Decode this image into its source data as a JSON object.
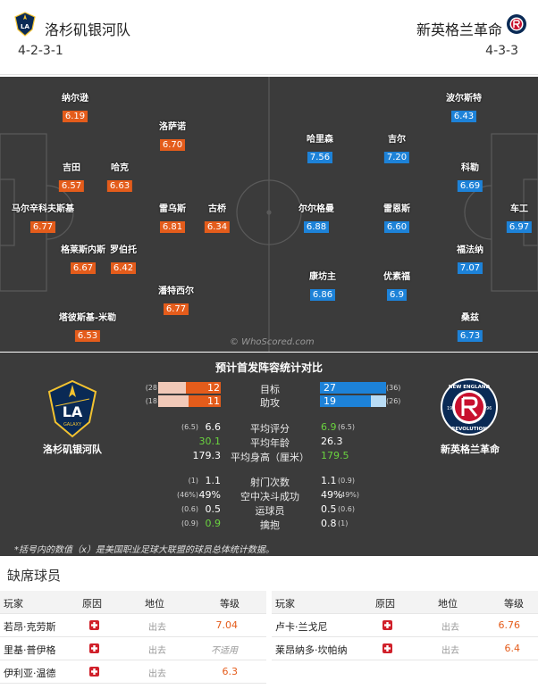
{
  "header": {
    "home_name": "洛杉矶银河队",
    "home_formation": "4-2-3-1",
    "away_name": "新英格兰革命",
    "away_formation": "4-3-3"
  },
  "home_players": [
    {
      "name": "纳尔逊",
      "rating": "6.19"
    },
    {
      "name": "洛萨诺",
      "rating": "6.70"
    },
    {
      "name": "吉田",
      "rating": "6.57"
    },
    {
      "name": "哈克",
      "rating": "6.63"
    },
    {
      "name": "马尔辛科夫斯基",
      "rating": "6.77"
    },
    {
      "name": "雷乌斯",
      "rating": "6.81"
    },
    {
      "name": "古桥",
      "rating": "6.34"
    },
    {
      "name": "格莱斯内斯",
      "rating": "6.67"
    },
    {
      "name": "罗伯托",
      "rating": "6.42"
    },
    {
      "name": "潘特西尔",
      "rating": "6.77"
    },
    {
      "name": "塔彼斯基-米勒",
      "rating": "6.53"
    }
  ],
  "away_players": [
    {
      "name": "波尔斯特",
      "rating": "6.43"
    },
    {
      "name": "哈里森",
      "rating": "7.56"
    },
    {
      "name": "吉尔",
      "rating": "7.20"
    },
    {
      "name": "科勒",
      "rating": "6.69"
    },
    {
      "name": "尔尔格曼",
      "rating": "6.88"
    },
    {
      "name": "雷恩斯",
      "rating": "6.60"
    },
    {
      "name": "车工",
      "rating": "6.97"
    },
    {
      "name": "福法纳",
      "rating": "7.07"
    },
    {
      "name": "康坊主",
      "rating": "6.86"
    },
    {
      "name": "优素福",
      "rating": "6.9"
    },
    {
      "name": "桑兹",
      "rating": "6.73"
    }
  ],
  "watermark": "© WhoScored.com",
  "comparison": {
    "title": "预计首发阵容统计对比",
    "home_team": "洛杉矶银河队",
    "away_team": "新英格兰革命",
    "home_crest_text": "LA",
    "home_crest_sub": "GALAXY",
    "away_crest_top": "NEW ENGLAND",
    "away_crest_bottom": "REVOLUTION",
    "away_crest_y1": "19",
    "away_crest_y2": "96",
    "goals": {
      "label": "目标",
      "home": 12,
      "home_lg": "(28",
      "away": 27,
      "away_lg": "(36)"
    },
    "assists": {
      "label": "助攻",
      "home": 11,
      "home_lg": "(18",
      "away": 19,
      "away_lg": "(26)"
    },
    "rows": [
      {
        "label": "平均评分",
        "home": "6.6",
        "home_lg": "(6.5)",
        "away": "6.9",
        "away_lg": "(6.5)",
        "hl": "away"
      },
      {
        "label": "平均年龄",
        "home": "30.1",
        "home_lg": "",
        "away": "26.3",
        "away_lg": "",
        "hl": "home"
      },
      {
        "label": "平均身高（厘米）",
        "home": "179.3",
        "home_lg": "",
        "away": "179.5",
        "away_lg": "",
        "hl": "away"
      },
      {
        "label": "射门次数",
        "home": "1.1",
        "home_lg": "(1)",
        "away": "1.1",
        "away_lg": "(0.9)",
        "hl": ""
      },
      {
        "label": "空中决斗成功",
        "home": "49%",
        "home_lg": "(46%)",
        "away": "49%",
        "away_lg": "(49%)",
        "hl": ""
      },
      {
        "label": "运球员",
        "home": "0.5",
        "home_lg": "(0.6)",
        "away": "0.5",
        "away_lg": "(0.6)",
        "hl": ""
      },
      {
        "label": "擒抱",
        "home": "0.9",
        "home_lg": "(0.9)",
        "away": "0.8",
        "away_lg": "(1)",
        "hl": "home"
      }
    ],
    "footnote": "*括号内的数值（x）是美国职业足球大联盟的球员总体统计数据。"
  },
  "missing": {
    "title": "缺席球员",
    "headers": {
      "player": "玩家",
      "reason": "原因",
      "position": "地位",
      "grade": "等级"
    },
    "home": [
      {
        "player": "若昂·克劳斯",
        "position": "出去",
        "grade": "7.04"
      },
      {
        "player": "里基·普伊格",
        "position": "出去",
        "grade": "不适用"
      },
      {
        "player": "伊利亚·温德",
        "position": "出去",
        "grade": "6.3"
      }
    ],
    "away": [
      {
        "player": "卢卡·兰戈尼",
        "position": "出去",
        "grade": "6.76"
      },
      {
        "player": "莱昂纳多·坎帕纳",
        "position": "出去",
        "grade": "6.4"
      }
    ]
  },
  "colors": {
    "home_accent": "#e45c1b",
    "away_accent": "#1d82d8",
    "pitch": "#3b3b3b",
    "green": "#6ad33f"
  }
}
